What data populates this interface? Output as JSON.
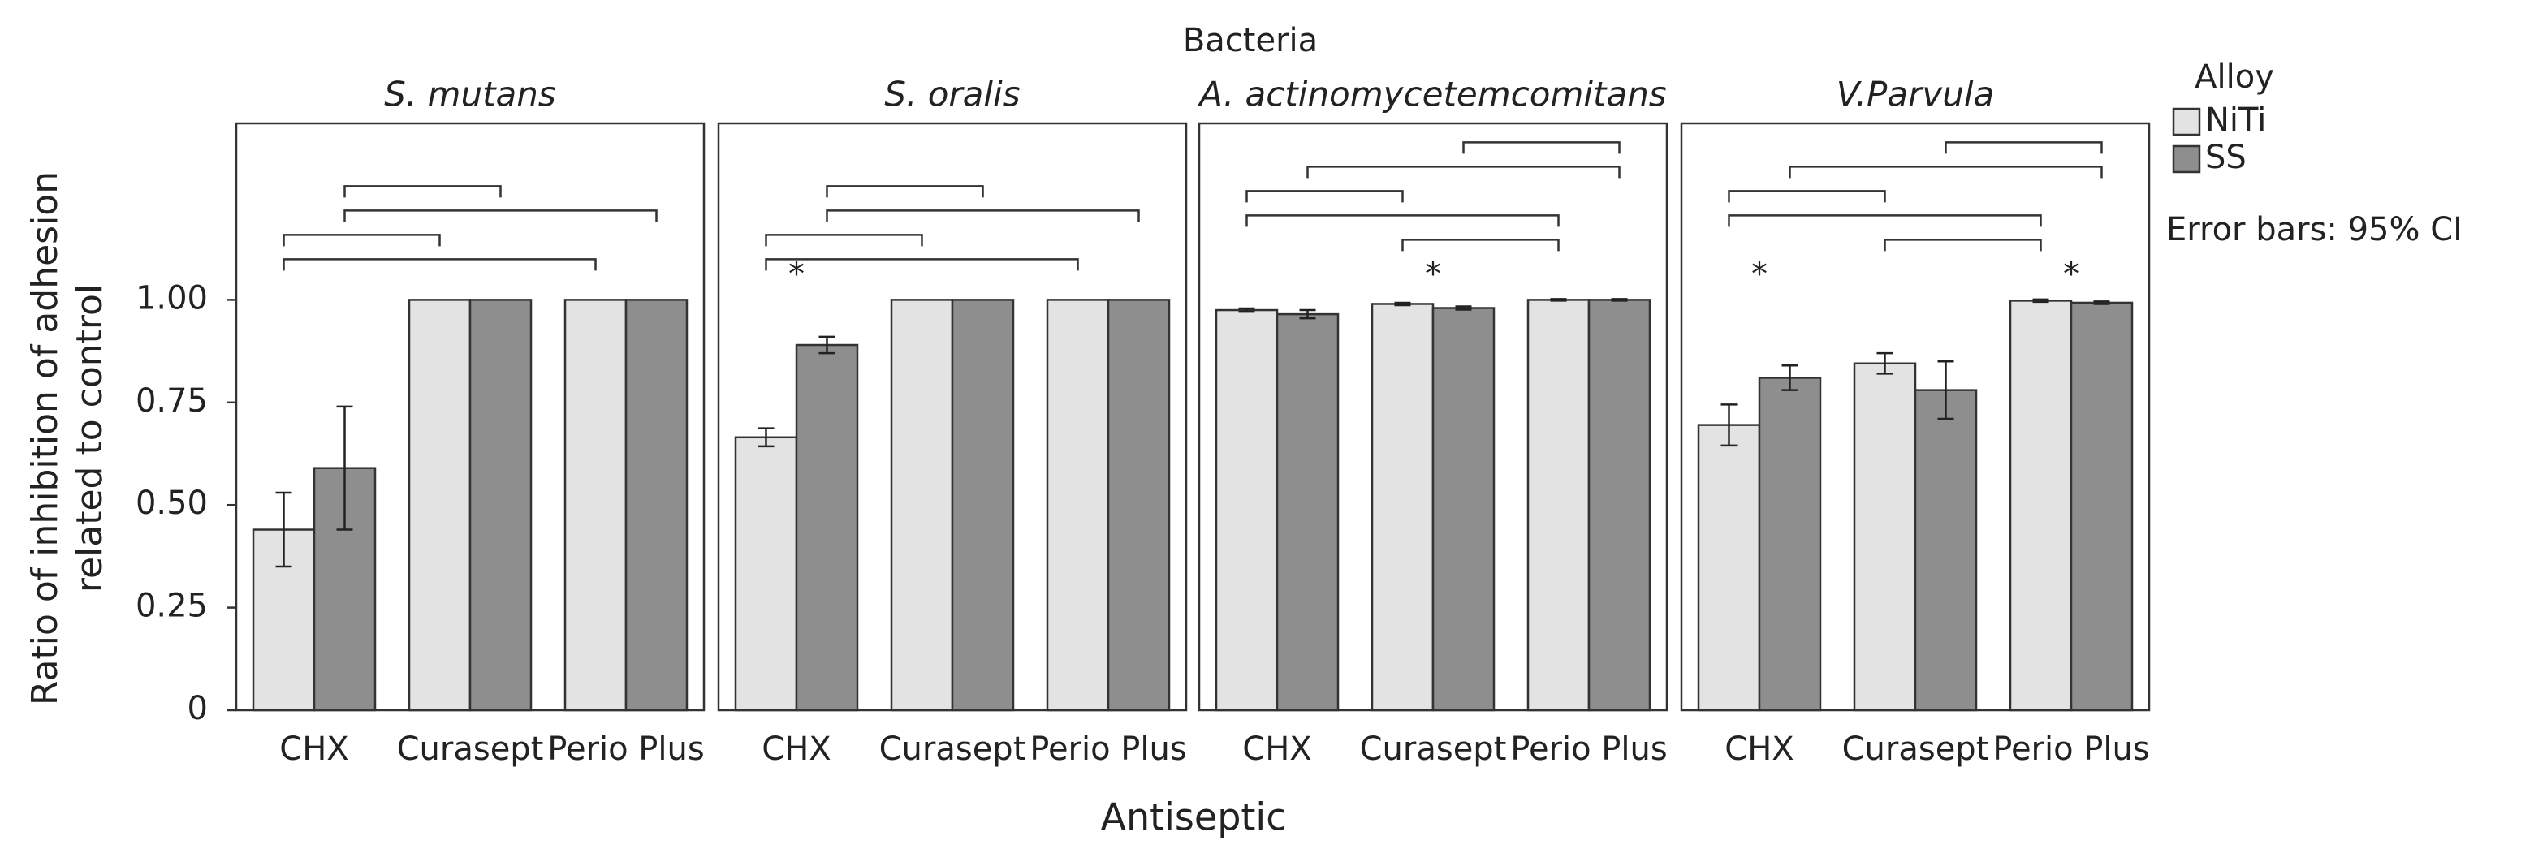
{
  "chart_data": {
    "type": "bar",
    "title": "Bacteria",
    "x_label": "Antiseptic",
    "y_label": [
      "Ratio of inhibition of adhesion",
      "related to control"
    ],
    "ylim": [
      0,
      1.43
    ],
    "yticks": [
      0,
      0.25,
      {
        "value": 0.5,
        "label": "0.50"
      },
      0.75,
      {
        "value": 1,
        "label": "1.00"
      }
    ],
    "legend": {
      "title": "Alloy",
      "entries": [
        {
          "name": "NiTi",
          "color": "#e3e3e3"
        },
        {
          "name": "SS",
          "color": "#8e8e8e"
        }
      ],
      "note": "Error bars: 95% CI"
    },
    "facets": [
      {
        "title": "S. mutans",
        "categories": [
          "CHX",
          "Curasept",
          "Perio Plus"
        ],
        "series": [
          {
            "values": [
              0.44,
              1,
              1
            ],
            "errors": [
              0.09,
              null,
              null
            ]
          },
          {
            "values": [
              0.59,
              1,
              1
            ],
            "errors": [
              0.15,
              null,
              null
            ]
          }
        ],
        "stars": [],
        "comparisons": [
          {
            "series": 0,
            "from": 0,
            "to": 2
          },
          {
            "series": 0,
            "from": 0,
            "to": 1
          },
          {
            "series": 1,
            "from": 0,
            "to": 2
          },
          {
            "series": 1,
            "from": 0,
            "to": 1
          }
        ]
      },
      {
        "title": "S. oralis",
        "categories": [
          "CHX",
          "Curasept",
          "Perio Plus"
        ],
        "series": [
          {
            "values": [
              0.665,
              1,
              1
            ],
            "errors": [
              0.022,
              null,
              null
            ]
          },
          {
            "values": [
              0.89,
              1,
              1
            ],
            "errors": [
              0.02,
              null,
              null
            ]
          }
        ],
        "stars": [
          {
            "category": 0,
            "label": "*"
          }
        ],
        "comparisons": [
          {
            "series": 0,
            "from": 0,
            "to": 2
          },
          {
            "series": 0,
            "from": 0,
            "to": 1
          },
          {
            "series": 1,
            "from": 0,
            "to": 2
          },
          {
            "series": 1,
            "from": 0,
            "to": 1
          }
        ]
      },
      {
        "title": "A. actinomycetemcomitans",
        "categories": [
          "CHX",
          "Curasept",
          "Perio Plus"
        ],
        "series": [
          {
            "values": [
              0.975,
              0.99,
              1.0
            ],
            "errors": [
              0.004,
              0.003,
              0.002
            ]
          },
          {
            "values": [
              0.965,
              0.98,
              1.0
            ],
            "errors": [
              0.01,
              0.004,
              0.002
            ]
          }
        ],
        "stars": [
          {
            "category": 1,
            "label": "*"
          }
        ],
        "comparisons": [
          {
            "series": 0,
            "from": 1,
            "to": 2
          },
          {
            "series": 0,
            "from": 0,
            "to": 2
          },
          {
            "series": 0,
            "from": 0,
            "to": 1
          },
          {
            "series": 1,
            "from": 0,
            "to": 2
          },
          {
            "series": 1,
            "from": 1,
            "to": 2
          }
        ]
      },
      {
        "title": "V.Parvula",
        "categories": [
          "CHX",
          "Curasept",
          "Perio Plus"
        ],
        "series": [
          {
            "values": [
              0.695,
              0.845,
              0.998
            ],
            "errors": [
              0.05,
              0.025,
              0.003
            ]
          },
          {
            "values": [
              0.81,
              0.78,
              0.993
            ],
            "errors": [
              0.03,
              0.07,
              0.003
            ]
          }
        ],
        "stars": [
          {
            "category": 0,
            "label": "*"
          },
          {
            "category": 2,
            "label": "*"
          }
        ],
        "comparisons": [
          {
            "series": 0,
            "from": 1,
            "to": 2
          },
          {
            "series": 0,
            "from": 0,
            "to": 2
          },
          {
            "series": 0,
            "from": 0,
            "to": 1
          },
          {
            "series": 1,
            "from": 0,
            "to": 2
          },
          {
            "series": 1,
            "from": 1,
            "to": 2
          }
        ]
      }
    ]
  }
}
